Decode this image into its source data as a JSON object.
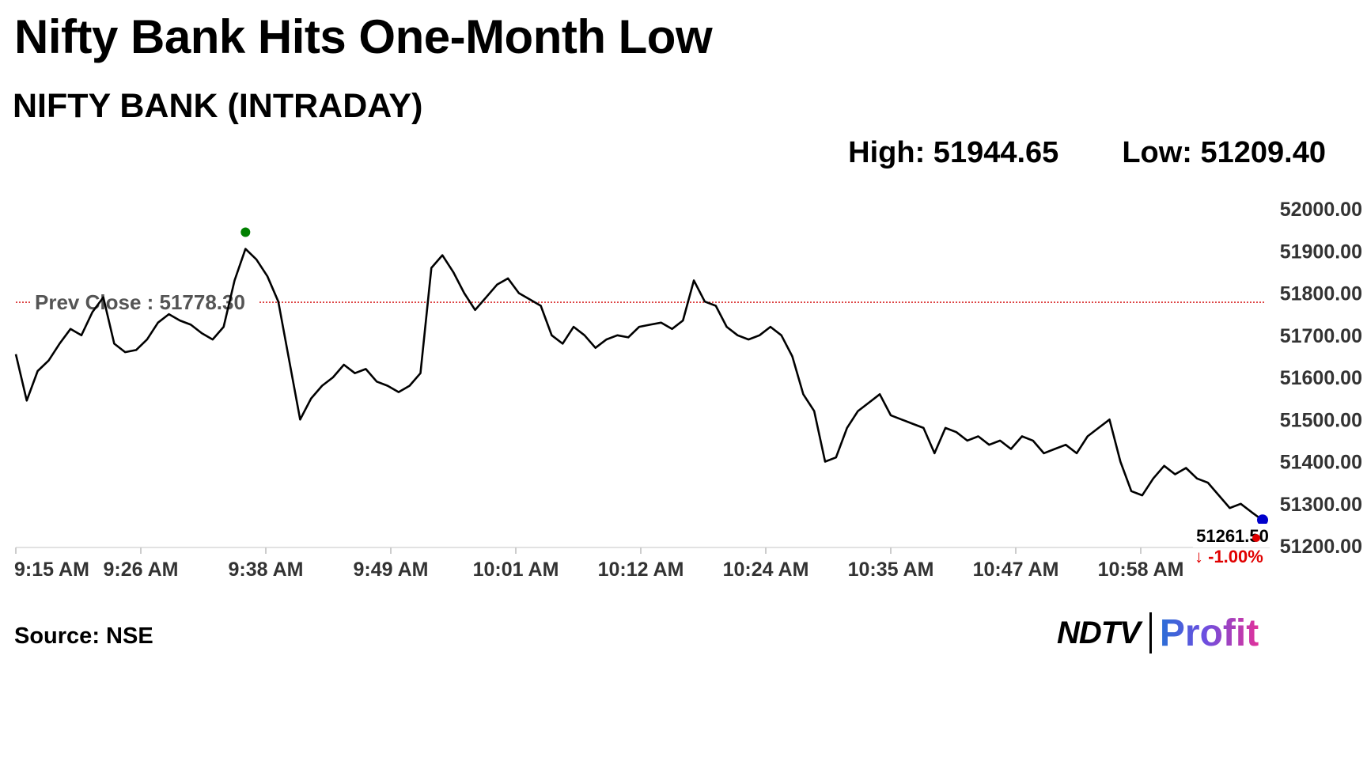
{
  "headline": "Nifty Bank Hits One-Month Low",
  "subtitle": "NIFTY BANK (INTRADAY)",
  "stats": {
    "high_label": "High: 51944.65",
    "low_label": "Low: 51209.40"
  },
  "source": "Source: NSE",
  "brand": {
    "ndtv": "NDTV",
    "profit": "Profit"
  },
  "chart_data": {
    "type": "line",
    "title": "NIFTY BANK (INTRADAY)",
    "x_tick_labels": [
      "9:15 AM",
      "9:26 AM",
      "9:38 AM",
      "9:49 AM",
      "10:01 AM",
      "10:12 AM",
      "10:24 AM",
      "10:35 AM",
      "10:47 AM",
      "10:58 AM"
    ],
    "y_ticks": [
      51200.0,
      51300.0,
      51400.0,
      51500.0,
      51600.0,
      51700.0,
      51800.0,
      51900.0,
      52000.0
    ],
    "ylim": [
      51200,
      52000
    ],
    "prev_close": {
      "label": "Prev Close : 51778.30",
      "value": 51778.3,
      "color": "#d00000"
    },
    "last": {
      "value_label": "51261.50",
      "change_label": "-1.00%",
      "arrow": "↓",
      "value": 51261.5,
      "change_color": "#e00000"
    },
    "high_point": {
      "value": 51944.65
    },
    "colors": {
      "line": "#000000",
      "high_marker": "#008000",
      "last_marker": "#0000cc",
      "last_dot": "#e00000"
    },
    "series": [
      {
        "x": [
          "9:15",
          "9:16",
          "9:17",
          "9:18",
          "9:19",
          "9:20",
          "9:21",
          "9:22",
          "9:23",
          "9:24",
          "9:25",
          "9:26",
          "9:27",
          "9:28",
          "9:29",
          "9:30",
          "9:31",
          "9:32",
          "9:33",
          "9:34",
          "9:35",
          "9:36",
          "9:37",
          "9:38",
          "9:39",
          "9:40",
          "9:41",
          "9:42",
          "9:43",
          "9:44",
          "9:45",
          "9:46",
          "9:47",
          "9:48",
          "9:49",
          "9:50",
          "9:51",
          "9:52",
          "9:53",
          "9:54",
          "9:55",
          "9:56",
          "9:57",
          "9:58",
          "9:59",
          "10:00",
          "10:01",
          "10:02",
          "10:03",
          "10:04",
          "10:05",
          "10:06",
          "10:07",
          "10:08",
          "10:09",
          "10:10",
          "10:11",
          "10:12",
          "10:13",
          "10:14",
          "10:15",
          "10:16",
          "10:17",
          "10:18",
          "10:19",
          "10:20",
          "10:21",
          "10:22",
          "10:23",
          "10:24",
          "10:25",
          "10:26",
          "10:27",
          "10:28",
          "10:29",
          "10:30",
          "10:31",
          "10:32",
          "10:33",
          "10:34",
          "10:35",
          "10:36",
          "10:37",
          "10:38",
          "10:39",
          "10:40",
          "10:41",
          "10:42",
          "10:43",
          "10:44",
          "10:45",
          "10:46",
          "10:47",
          "10:48",
          "10:49",
          "10:50",
          "10:51",
          "10:52",
          "10:53",
          "10:54",
          "10:55",
          "10:56",
          "10:57",
          "10:58",
          "10:59",
          "11:00",
          "11:01",
          "11:02",
          "11:03",
          "11:04",
          "11:05",
          "11:06",
          "11:07",
          "11:08",
          "11:09"
        ],
        "values": [
          51655,
          51545,
          51615,
          51640,
          51680,
          51715,
          51700,
          51755,
          51790,
          51680,
          51660,
          51665,
          51690,
          51730,
          51750,
          51735,
          51725,
          51705,
          51690,
          51720,
          51830,
          51905,
          51880,
          51840,
          51780,
          51640,
          51500,
          51550,
          51580,
          51600,
          51630,
          51610,
          51620,
          51590,
          51580,
          51565,
          51580,
          51610,
          51860,
          51890,
          51850,
          51800,
          51760,
          51790,
          51820,
          51835,
          51800,
          51785,
          51770,
          51700,
          51680,
          51720,
          51700,
          51670,
          51690,
          51700,
          51695,
          51720,
          51725,
          51730,
          51715,
          51735,
          51830,
          51780,
          51770,
          51720,
          51700,
          51690,
          51700,
          51720,
          51700,
          51650,
          51560,
          51520,
          51400,
          51410,
          51480,
          51520,
          51540,
          51560,
          51510,
          51500,
          51490,
          51480,
          51420,
          51480,
          51470,
          51450,
          51460,
          51440,
          51450,
          51430,
          51460,
          51450,
          51420,
          51430,
          51440,
          51420,
          51460,
          51480,
          51500,
          51400,
          51330,
          51320,
          51360,
          51390,
          51370,
          51385,
          51360,
          51350,
          51320,
          51290,
          51300,
          51280,
          51261
        ]
      }
    ]
  }
}
